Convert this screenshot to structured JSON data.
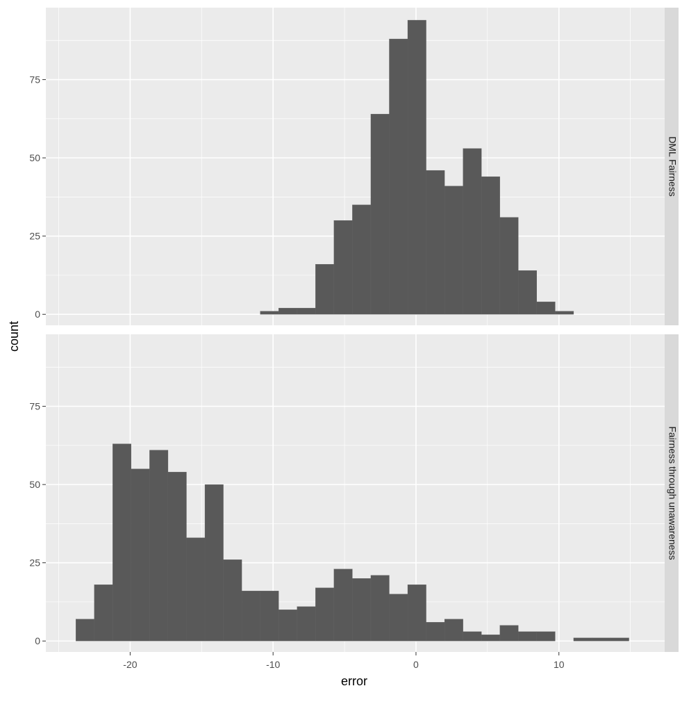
{
  "chart_data": {
    "type": "bar",
    "xlabel": "error",
    "ylabel": "count",
    "xlim": [
      -25.9,
      17.4
    ],
    "ylim": [
      -3.5,
      98
    ],
    "x_ticks": [
      -20,
      -10,
      0,
      10
    ],
    "x_tick_labels": [
      "-20",
      "-10",
      "0",
      "10"
    ],
    "y_ticks": [
      0,
      25,
      50,
      75
    ],
    "y_tick_labels": [
      "0",
      "25",
      "50",
      "75"
    ],
    "bin_width": 1.29,
    "grid": true,
    "colors": {
      "bar": "#595959",
      "panel_bg": "#ebebeb",
      "grid_major": "#ffffff",
      "strip_bg": "#d9d9d9",
      "text": "#4d4d4d"
    },
    "facets": [
      {
        "strip_label": "DML Fairness",
        "bins": [
          {
            "x0": -10.9,
            "x1": -9.61,
            "count": 1
          },
          {
            "x0": -9.61,
            "x1": -8.32,
            "count": 2
          },
          {
            "x0": -8.32,
            "x1": -7.03,
            "count": 2
          },
          {
            "x0": -7.03,
            "x1": -5.74,
            "count": 16
          },
          {
            "x0": -5.74,
            "x1": -4.45,
            "count": 30
          },
          {
            "x0": -4.45,
            "x1": -3.16,
            "count": 35
          },
          {
            "x0": -3.16,
            "x1": -1.87,
            "count": 64
          },
          {
            "x0": -1.87,
            "x1": -0.58,
            "count": 88
          },
          {
            "x0": -0.58,
            "x1": 0.71,
            "count": 94
          },
          {
            "x0": 0.71,
            "x1": 2.0,
            "count": 46
          },
          {
            "x0": 2.0,
            "x1": 3.29,
            "count": 41
          },
          {
            "x0": 3.29,
            "x1": 4.58,
            "count": 53
          },
          {
            "x0": 4.58,
            "x1": 5.87,
            "count": 44
          },
          {
            "x0": 5.87,
            "x1": 7.16,
            "count": 31
          },
          {
            "x0": 7.16,
            "x1": 8.45,
            "count": 14
          },
          {
            "x0": 8.45,
            "x1": 9.74,
            "count": 4
          },
          {
            "x0": 9.74,
            "x1": 11.03,
            "count": 1
          }
        ]
      },
      {
        "strip_label": "Fairness through unawareness",
        "bins": [
          {
            "x0": -23.8,
            "x1": -22.51,
            "count": 7
          },
          {
            "x0": -22.51,
            "x1": -21.22,
            "count": 18
          },
          {
            "x0": -21.22,
            "x1": -19.93,
            "count": 63
          },
          {
            "x0": -19.93,
            "x1": -18.64,
            "count": 55
          },
          {
            "x0": -18.64,
            "x1": -17.35,
            "count": 61
          },
          {
            "x0": -17.35,
            "x1": -16.06,
            "count": 54
          },
          {
            "x0": -16.06,
            "x1": -14.77,
            "count": 33
          },
          {
            "x0": -14.77,
            "x1": -13.48,
            "count": 50
          },
          {
            "x0": -13.48,
            "x1": -12.19,
            "count": 26
          },
          {
            "x0": -12.19,
            "x1": -10.9,
            "count": 16
          },
          {
            "x0": -10.9,
            "x1": -9.61,
            "count": 16
          },
          {
            "x0": -9.61,
            "x1": -8.32,
            "count": 10
          },
          {
            "x0": -8.32,
            "x1": -7.03,
            "count": 11
          },
          {
            "x0": -7.03,
            "x1": -5.74,
            "count": 17
          },
          {
            "x0": -5.74,
            "x1": -4.45,
            "count": 23
          },
          {
            "x0": -4.45,
            "x1": -3.16,
            "count": 20
          },
          {
            "x0": -3.16,
            "x1": -1.87,
            "count": 21
          },
          {
            "x0": -1.87,
            "x1": -0.58,
            "count": 15
          },
          {
            "x0": -0.58,
            "x1": 0.71,
            "count": 18
          },
          {
            "x0": 0.71,
            "x1": 2.0,
            "count": 6
          },
          {
            "x0": 2.0,
            "x1": 3.29,
            "count": 7
          },
          {
            "x0": 3.29,
            "x1": 4.58,
            "count": 3
          },
          {
            "x0": 4.58,
            "x1": 5.87,
            "count": 2
          },
          {
            "x0": 5.87,
            "x1": 7.16,
            "count": 5
          },
          {
            "x0": 7.16,
            "x1": 8.45,
            "count": 3
          },
          {
            "x0": 8.45,
            "x1": 9.74,
            "count": 3
          },
          {
            "x0": 9.74,
            "x1": 11.03,
            "count": 0
          },
          {
            "x0": 11.03,
            "x1": 12.32,
            "count": 1
          },
          {
            "x0": 12.32,
            "x1": 13.61,
            "count": 1
          },
          {
            "x0": 13.61,
            "x1": 14.9,
            "count": 1
          }
        ]
      }
    ]
  }
}
